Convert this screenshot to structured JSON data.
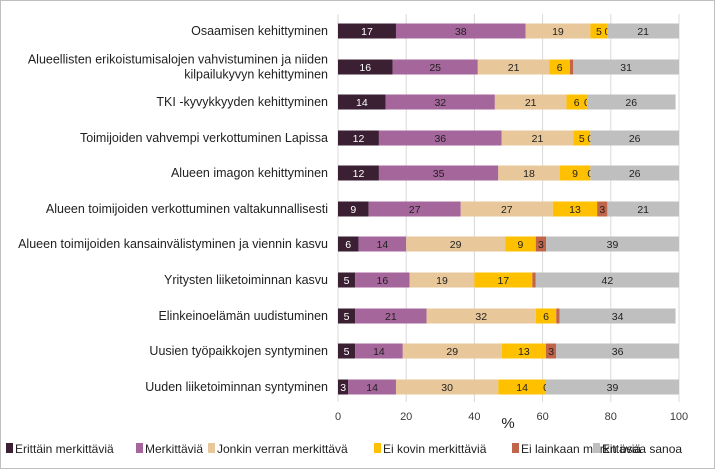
{
  "chart_data": {
    "type": "bar",
    "orientation": "horizontal",
    "stacked": true,
    "title": "",
    "xlabel": "%",
    "ylabel": "",
    "xlim": [
      0,
      100
    ],
    "xticks": [
      0,
      20,
      40,
      60,
      80,
      100
    ],
    "grid": true,
    "legend_position": "bottom",
    "categories": [
      [
        "Osaamisen kehittyminen"
      ],
      [
        "Alueellisten erikoistumisalojen vahvistuminen ja niiden",
        "kilpailukyvyn kehittyminen"
      ],
      [
        "TKI -kyvykkyyden kehittyminen"
      ],
      [
        "Toimijoiden vahvempi verkottuminen Lapissa"
      ],
      [
        "Alueen imagon kehittyminen"
      ],
      [
        "Alueen toimijoiden verkottuminen valtakunnallisesti"
      ],
      [
        "Alueen toimijoiden kansainvälistyminen ja viennin kasvu"
      ],
      [
        "Yritysten liiketoiminnan kasvu"
      ],
      [
        "Elinkeinoelämän uudistuminen"
      ],
      [
        "Uusien työpaikkojen syntyminen"
      ],
      [
        "Uuden liiketoiminnan syntyminen"
      ]
    ],
    "series": [
      {
        "name": "Erittäin merkittäviä",
        "color": "#3b1f33",
        "label_color": "#ffffff",
        "values": [
          17,
          16,
          14,
          12,
          12,
          9,
          6,
          5,
          5,
          5,
          3
        ]
      },
      {
        "name": "Merkittäviä",
        "color": "#a5669b",
        "label_color": "#1f1f1f",
        "values": [
          38,
          25,
          32,
          36,
          35,
          27,
          14,
          16,
          21,
          14,
          14
        ]
      },
      {
        "name": "Jonkin verran merkittävä",
        "color": "#e8c79a",
        "label_color": "#1f1f1f",
        "values": [
          19,
          21,
          21,
          21,
          18,
          27,
          29,
          19,
          32,
          29,
          30
        ]
      },
      {
        "name": "Ei kovin merkittäviä",
        "color": "#ffc000",
        "label_color": "#1f1f1f",
        "values": [
          5,
          6,
          6,
          5,
          9,
          13,
          9,
          17,
          6,
          13,
          14
        ]
      },
      {
        "name": "Ei lainkaan merkittäviä",
        "color": "#c0654a",
        "label_color": "#1f1f1f",
        "values": [
          0,
          1,
          0,
          0,
          0,
          3,
          3,
          1,
          1,
          3,
          0
        ],
        "labels": [
          "0",
          "",
          "0",
          "0",
          "0",
          "3",
          "3",
          "",
          "",
          "3",
          "0"
        ]
      },
      {
        "name": "En osaa sanoa",
        "color": "#bfbfbf",
        "label_color": "#1f1f1f",
        "values": [
          21,
          31,
          26,
          26,
          26,
          21,
          39,
          42,
          34,
          36,
          39
        ]
      }
    ]
  }
}
